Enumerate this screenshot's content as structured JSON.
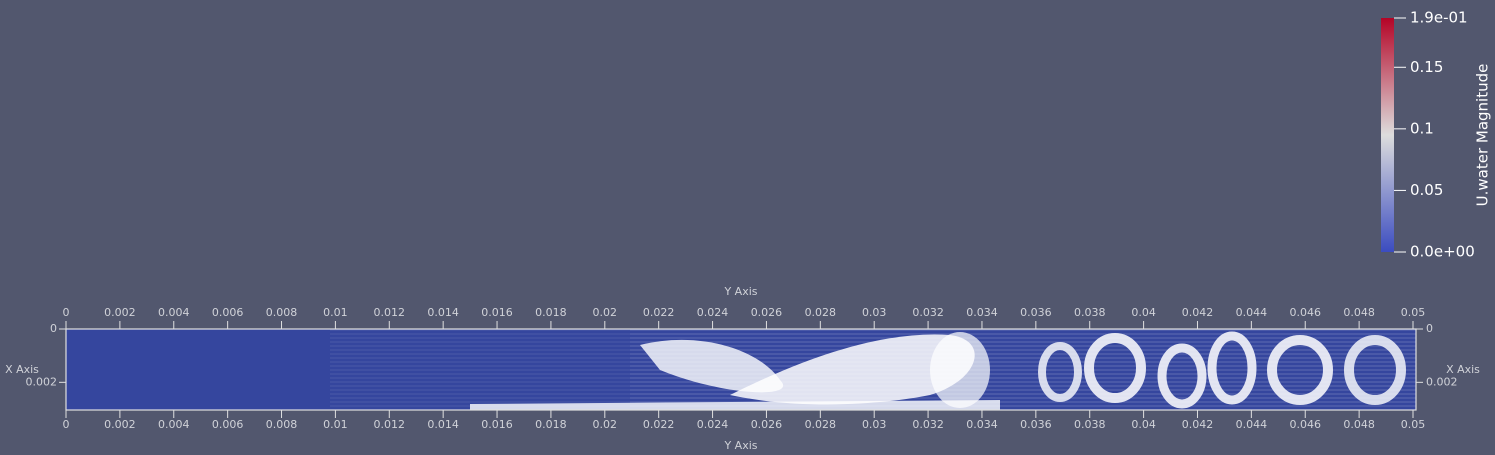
{
  "chart_data": {
    "type": "vector-field",
    "xlabel": "Y Axis",
    "ylabel": "X Axis",
    "xlim": [
      0,
      0.05
    ],
    "ylim": [
      0,
      0.003
    ],
    "xticks": [
      0,
      0.002,
      0.004,
      0.006,
      0.008,
      0.01,
      0.012,
      0.014,
      0.016,
      0.018,
      0.02,
      0.022,
      0.024,
      0.026,
      0.028,
      0.03,
      0.032,
      0.034,
      0.036,
      0.038,
      0.04,
      0.042,
      0.044,
      0.046,
      0.048,
      0.05
    ],
    "yticks": [
      0,
      0.002
    ],
    "field_color": "#35469e",
    "colorbar": {
      "title": "U.water Magnitude",
      "range": [
        0,
        0.19
      ],
      "colors": [
        "#3b4cc0",
        "#dddddd",
        "#b40426"
      ],
      "ticks": [
        {
          "value": 0.19,
          "label": "1.9e-01"
        },
        0.15,
        0.1,
        0.05,
        {
          "value": 0,
          "label": "0.0e+00"
        }
      ]
    }
  }
}
